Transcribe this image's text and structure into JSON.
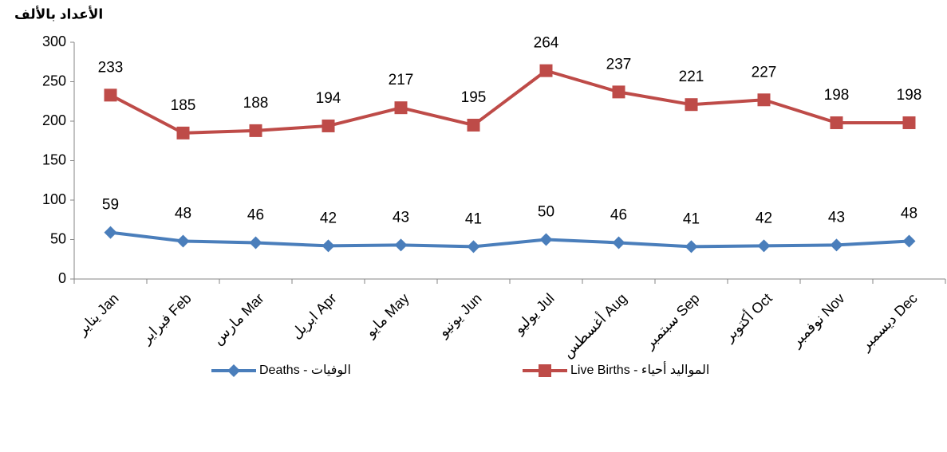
{
  "chart_data": {
    "type": "line",
    "y_axis_label": "الأعداد بالألف",
    "categories": [
      "يناير Jan",
      "فبراير Feb",
      "مارس Mar",
      "ابريل Apr",
      "مايو May",
      "يونيو Jun",
      "يوليو Jul",
      "أغسطس Aug",
      "سبتمبر Sep",
      "أكتوبر Oct",
      "نوفمبر Nov",
      "ديسمبر Dec"
    ],
    "series": [
      {
        "name": "Deaths - الوفيات",
        "color": "#4a7ebb",
        "marker": "diamond",
        "values": [
          59,
          48,
          46,
          42,
          43,
          41,
          50,
          46,
          41,
          42,
          43,
          48
        ]
      },
      {
        "name": "Live Births - المواليد أحياء",
        "color": "#be4b48",
        "marker": "square",
        "values": [
          233,
          185,
          188,
          194,
          217,
          195,
          264,
          237,
          221,
          227,
          198,
          198
        ]
      }
    ],
    "ylim": [
      0,
      300
    ],
    "yticks": [
      0,
      50,
      100,
      150,
      200,
      250,
      300
    ],
    "grid": false,
    "legend": "bottom"
  }
}
